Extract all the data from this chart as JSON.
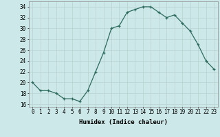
{
  "x": [
    0,
    1,
    2,
    3,
    4,
    5,
    6,
    7,
    8,
    9,
    10,
    11,
    12,
    13,
    14,
    15,
    16,
    17,
    18,
    19,
    20,
    21,
    22,
    23
  ],
  "y": [
    20,
    18.5,
    18.5,
    18,
    17,
    17,
    16.5,
    18.5,
    22,
    25.5,
    30,
    30.5,
    33,
    33.5,
    34,
    34,
    33,
    32,
    32.5,
    31,
    29.5,
    27,
    24,
    22.5
  ],
  "line_color": "#2d6b5e",
  "marker": "+",
  "marker_size": 3,
  "bg_color": "#cde8e8",
  "grid_color": "#b8d0d0",
  "xlabel": "Humidex (Indice chaleur)",
  "xlim": [
    -0.5,
    23.5
  ],
  "ylim": [
    15.5,
    35
  ],
  "yticks": [
    16,
    18,
    20,
    22,
    24,
    26,
    28,
    30,
    32,
    34
  ],
  "xticks": [
    0,
    1,
    2,
    3,
    4,
    5,
    6,
    7,
    8,
    9,
    10,
    11,
    12,
    13,
    14,
    15,
    16,
    17,
    18,
    19,
    20,
    21,
    22,
    23
  ],
  "xtick_labels": [
    "0",
    "1",
    "2",
    "3",
    "4",
    "5",
    "6",
    "7",
    "8",
    "9",
    "10",
    "11",
    "12",
    "13",
    "14",
    "15",
    "16",
    "17",
    "18",
    "19",
    "20",
    "21",
    "22",
    "23"
  ],
  "xlabel_fontsize": 6.5,
  "tick_fontsize": 5.5,
  "line_width": 0.9,
  "marker_edge_width": 0.9
}
